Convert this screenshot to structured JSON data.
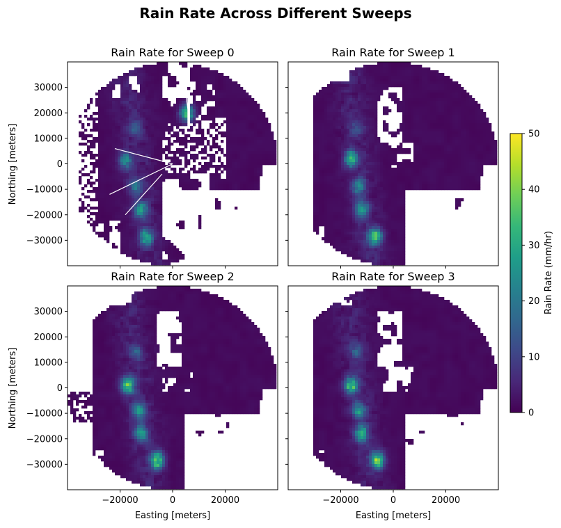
{
  "figure": {
    "title": "Rain Rate Across Different Sweeps"
  },
  "colormap": {
    "name": "viridis",
    "stops": [
      "#440154",
      "#482878",
      "#3e4989",
      "#31688e",
      "#26828e",
      "#1f9e89",
      "#35b779",
      "#6ece58",
      "#b5de2b",
      "#fde725"
    ]
  },
  "colorbar": {
    "label": "Rain Rate (mm/hr)",
    "ticks": [
      "0",
      "10",
      "20",
      "30",
      "40",
      "50"
    ],
    "range": [
      0,
      50
    ]
  },
  "chart_data": [
    {
      "type": "heatmap",
      "title": "Rain Rate for Sweep 0",
      "xlabel": "",
      "ylabel": "Northing [meters]",
      "xlim": [
        -40000,
        40000
      ],
      "ylim": [
        -40000,
        40000
      ],
      "xticks": [],
      "yticks": [
        "30000",
        "20000",
        "10000",
        "0",
        "−10000",
        "−20000",
        "−30000"
      ],
      "value_range": [
        0,
        50
      ],
      "units": "mm/hr",
      "max_range_km": 40,
      "clutter": true,
      "cores": [
        {
          "x": -18000,
          "y": 1000,
          "rate": 28
        },
        {
          "x": -14000,
          "y": -9000,
          "rate": 22
        },
        {
          "x": -12000,
          "y": -18000,
          "rate": 30
        },
        {
          "x": -10000,
          "y": -29000,
          "rate": 34
        },
        {
          "x": -14000,
          "y": 14000,
          "rate": 14
        },
        {
          "x": 5500,
          "y": 20000,
          "rate": 45
        }
      ]
    },
    {
      "type": "heatmap",
      "title": "Rain Rate for Sweep 1",
      "xlabel": "",
      "ylabel": "",
      "xlim": [
        -40000,
        40000
      ],
      "ylim": [
        -40000,
        40000
      ],
      "xticks": [],
      "yticks": [],
      "value_range": [
        0,
        50
      ],
      "units": "mm/hr",
      "max_range_km": 40,
      "clutter": false,
      "cores": [
        {
          "x": -16000,
          "y": 2000,
          "rate": 40
        },
        {
          "x": -13000,
          "y": -9000,
          "rate": 26
        },
        {
          "x": -12000,
          "y": -18000,
          "rate": 32
        },
        {
          "x": -7000,
          "y": -28500,
          "rate": 45
        },
        {
          "x": -14000,
          "y": 14000,
          "rate": 14
        }
      ]
    },
    {
      "type": "heatmap",
      "title": "Rain Rate for Sweep 2",
      "xlabel": "Easting [meters]",
      "ylabel": "Northing [meters]",
      "xlim": [
        -40000,
        40000
      ],
      "ylim": [
        -40000,
        40000
      ],
      "xticks": [
        "−20000",
        "0",
        "20000"
      ],
      "yticks": [
        "30000",
        "20000",
        "10000",
        "0",
        "−10000",
        "−20000",
        "−30000"
      ],
      "value_range": [
        0,
        50
      ],
      "units": "mm/hr",
      "max_range_km": 40,
      "clutter": false,
      "cores": [
        {
          "x": -17000,
          "y": 1000,
          "rate": 45
        },
        {
          "x": -13000,
          "y": -9000,
          "rate": 28
        },
        {
          "x": -12000,
          "y": -18000,
          "rate": 34
        },
        {
          "x": -6000,
          "y": -28500,
          "rate": 48
        },
        {
          "x": -14000,
          "y": 14000,
          "rate": 14
        }
      ]
    },
    {
      "type": "heatmap",
      "title": "Rain Rate for Sweep 3",
      "xlabel": "Easting [meters]",
      "ylabel": "",
      "xlim": [
        -40000,
        40000
      ],
      "ylim": [
        -40000,
        40000
      ],
      "xticks": [
        "−20000",
        "0",
        "20000"
      ],
      "yticks": [],
      "value_range": [
        0,
        50
      ],
      "units": "mm/hr",
      "max_range_km": 40,
      "clutter": false,
      "cores": [
        {
          "x": -16000,
          "y": 1000,
          "rate": 42
        },
        {
          "x": -13000,
          "y": -9000,
          "rate": 28
        },
        {
          "x": -12000,
          "y": -18000,
          "rate": 34
        },
        {
          "x": -6000,
          "y": -28500,
          "rate": 46
        },
        {
          "x": -14000,
          "y": 14000,
          "rate": 14
        }
      ]
    }
  ]
}
